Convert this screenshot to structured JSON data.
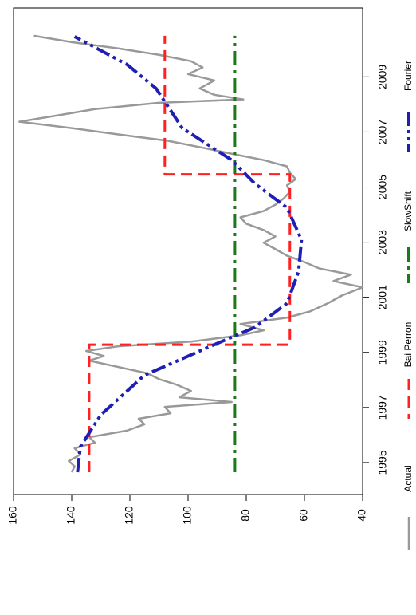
{
  "chart_data": {
    "type": "line",
    "xlim": [
      1993.84,
      2011.5
    ],
    "xticks": [
      1995,
      1997,
      1999,
      2001,
      2003,
      2005,
      2007,
      2009
    ],
    "ylim": [
      40,
      160
    ],
    "yticks": [
      40,
      60,
      80,
      100,
      120,
      140,
      160
    ],
    "series": [
      {
        "name": "Actual",
        "color": "#999999",
        "x": [
          1994.65,
          1994.86,
          1995.06,
          1995.29,
          1995.52,
          1995.72,
          1995.92,
          1996.16,
          1996.39,
          1996.59,
          1996.79,
          1997.02,
          1997.2,
          1997.37,
          1997.6,
          1997.83,
          1998.03,
          1998.24,
          1998.47,
          1998.7,
          1998.87,
          1999.05,
          1999.22,
          1999.39,
          1999.62,
          1999.8,
          2000.03,
          2000.26,
          2000.49,
          2000.78,
          2001.07,
          2001.36,
          2001.59,
          2001.82,
          2002.05,
          2002.28,
          2002.51,
          2002.75,
          2002.98,
          2003.21,
          2003.44,
          2003.67,
          2003.9,
          2004.13,
          2004.36,
          2004.6,
          2004.83,
          2005.06,
          2005.29,
          2005.52,
          2005.75,
          2005.98,
          2006.21,
          2006.45,
          2006.68,
          2006.91,
          2007.14,
          2007.37,
          2007.6,
          2007.83,
          2008.06,
          2008.18,
          2008.35,
          2008.58,
          2008.87,
          2009.1,
          2009.34,
          2009.57,
          2009.8,
          2010.03,
          2010.26,
          2010.49
        ],
        "values": [
          140,
          139,
          141,
          137,
          139,
          132,
          134,
          121,
          115,
          117,
          106,
          108,
          85,
          103,
          99,
          104,
          110,
          114,
          124,
          134,
          129,
          135,
          124,
          99,
          82,
          74,
          82,
          66,
          58,
          52,
          47,
          40,
          50,
          44,
          55,
          60,
          66,
          70,
          74,
          70,
          74,
          80,
          82,
          74,
          70,
          67,
          65,
          66,
          63,
          65,
          66,
          74,
          85,
          96,
          107,
          124,
          140,
          158,
          145,
          132,
          110,
          81,
          91,
          96,
          91,
          100,
          95,
          99,
          110,
          124,
          140,
          153
        ]
      },
      {
        "name": "Bai Perron",
        "color": "#ff2020",
        "x": [
          1994.65,
          1999.28,
          1999.28,
          2005.46,
          2005.46,
          2010.49
        ],
        "values": [
          134,
          134,
          65,
          65,
          108,
          108
        ]
      },
      {
        "name": "SlowShift",
        "color": "#1a7a1a",
        "x": [
          1994.65,
          2010.49
        ],
        "values": [
          84,
          84
        ]
      },
      {
        "name": "Fourier",
        "color": "#1f1fb4",
        "x": [
          1994.65,
          1995.58,
          1996.73,
          1998.17,
          1999.28,
          1999.91,
          2000.78,
          2001.94,
          2003.09,
          2004.25,
          2005.12,
          2005.98,
          2007.14,
          2008.58,
          2009.45,
          2010.46
        ],
        "values": [
          138,
          137,
          130,
          115,
          91,
          77,
          66,
          62,
          61,
          66,
          77,
          85,
          102,
          111,
          121,
          139
        ]
      }
    ]
  }
}
